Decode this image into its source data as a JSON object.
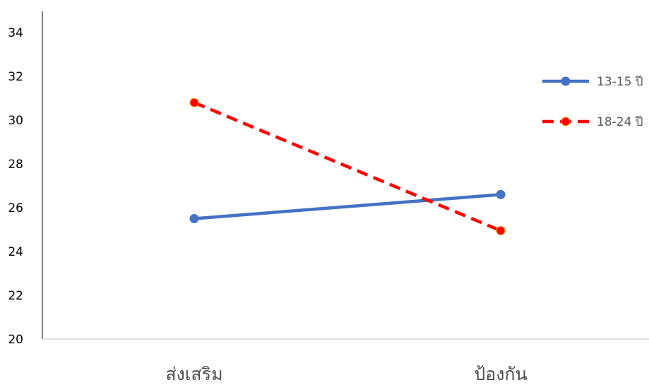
{
  "chart_data": {
    "type": "line",
    "categories": [
      "ส่งเสริม",
      "ป้องกัน"
    ],
    "series": [
      {
        "name": "13-15 ปี",
        "values": [
          25.5,
          26.6
        ],
        "color": "#4472c4",
        "dash": "solid"
      },
      {
        "name": "18-24 ปี",
        "values": [
          30.8,
          24.95
        ],
        "color": "#ff0000",
        "dash": "dashed"
      }
    ],
    "title": "",
    "xlabel": "",
    "ylabel": "",
    "ylim": [
      20,
      35
    ],
    "yticks": [
      20,
      22,
      24,
      26,
      28,
      30,
      32,
      34
    ],
    "grid": false,
    "legend": "right"
  }
}
